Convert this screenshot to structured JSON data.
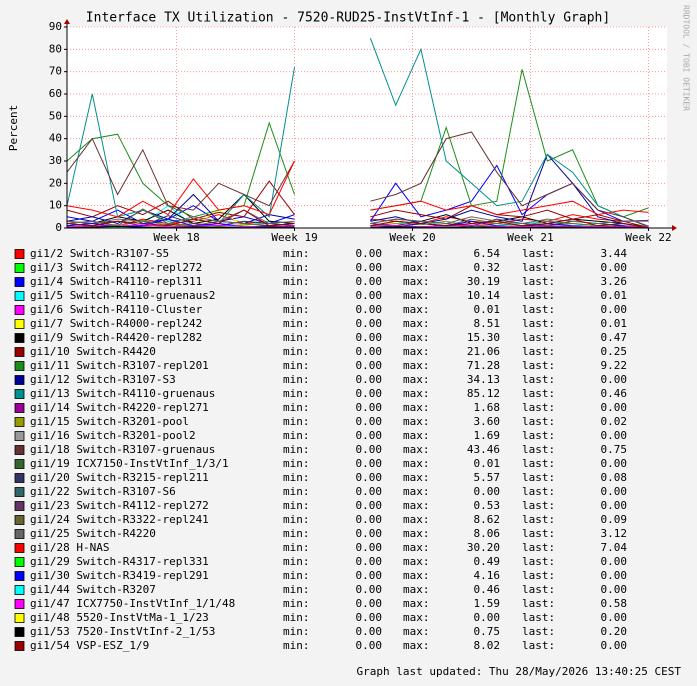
{
  "chart_data": {
    "type": "line",
    "title": "Interface TX Utilization - 7520-RUD25-InstVtInf-1 - [Monthly Graph]",
    "y_label": "Percent",
    "side_label": "RRDTOOL / TOBI OETIKER",
    "footer": "Graph last updated: Thu 28/May/2026 13:40:25 CEST",
    "grid": true,
    "legend_labels": {
      "min": "min:",
      "max": "max:",
      "last": "last:"
    },
    "x": [
      0,
      1.5,
      3,
      4.5,
      6,
      7.5,
      9,
      10.5,
      12,
      13.5,
      15,
      16.5,
      18,
      19.5,
      21,
      22.5,
      24,
      25.5,
      27,
      28.5,
      30,
      31.5,
      33,
      34.5
    ],
    "xlim": [
      0,
      35.6
    ],
    "xticks": [
      {
        "value": 6.5,
        "label": "Week 18"
      },
      {
        "value": 13.5,
        "label": "Week 19"
      },
      {
        "value": 20.5,
        "label": "Week 20"
      },
      {
        "value": 27.5,
        "label": "Week 21"
      },
      {
        "value": 34.5,
        "label": "Week 22"
      }
    ],
    "ylim": [
      0,
      90
    ],
    "yticks": [
      0,
      10,
      20,
      30,
      40,
      50,
      60,
      70,
      80,
      90
    ],
    "series": [
      {
        "name": "gi1/2 Switch-R3107-S5",
        "color": "#FF0000",
        "min": "0.00",
        "max": "6.54",
        "last": "3.44",
        "values": [
          2,
          3,
          1,
          4,
          2,
          3,
          6,
          2,
          3,
          2,
          null,
          null,
          4,
          3,
          2,
          5,
          3,
          2,
          4,
          3,
          6,
          4,
          3,
          3.4
        ]
      },
      {
        "name": "gi1/3 Switch-R4112-repl272",
        "color": "#00FF00",
        "min": "0.00",
        "max": "0.32",
        "last": "0.00",
        "values": [
          0.1,
          0.2,
          0,
          0.1,
          0.3,
          0,
          0.1,
          0.2,
          0,
          0.1,
          null,
          null,
          0,
          0.2,
          0.1,
          0,
          0.3,
          0.1,
          0,
          0.2,
          0.1,
          0,
          0.1,
          0
        ]
      },
      {
        "name": "gi1/4 Switch-R4110-repl311",
        "color": "#0000FF",
        "min": "0.00",
        "max": "30.19",
        "last": "3.26",
        "values": [
          5,
          3,
          8,
          2,
          4,
          10,
          3,
          5,
          2,
          6,
          null,
          null,
          3,
          20,
          5,
          8,
          12,
          28,
          6,
          15,
          20,
          8,
          3,
          3.3
        ]
      },
      {
        "name": "gi1/5 Switch-R4110-gruenaus2",
        "color": "#00FFFF",
        "min": "0.00",
        "max": "10.14",
        "last": "0.01",
        "values": [
          2,
          1,
          3,
          2,
          10,
          1,
          2,
          1,
          3,
          2,
          null,
          null,
          1,
          2,
          3,
          1,
          2,
          1,
          2,
          3,
          1,
          2,
          1,
          0
        ]
      },
      {
        "name": "gi1/6 Switch-R4110-Cluster",
        "color": "#FF00FF",
        "min": "0.00",
        "max": "0.01",
        "last": "0.00",
        "values": [
          0,
          0,
          0,
          0,
          0,
          0,
          0,
          0,
          0,
          0,
          null,
          null,
          0,
          0,
          0,
          0,
          0,
          0,
          0,
          0,
          0,
          0,
          0,
          0
        ]
      },
      {
        "name": "gi1/7 Switch-R4000-repl242",
        "color": "#FFFF00",
        "min": "0.00",
        "max": "8.51",
        "last": "0.01",
        "values": [
          1,
          2,
          1,
          0,
          2,
          1,
          8,
          1,
          0,
          1,
          null,
          null,
          1,
          2,
          0,
          1,
          2,
          1,
          0,
          1,
          2,
          1,
          0,
          0
        ]
      },
      {
        "name": "gi1/9 Switch-R4420-repl282",
        "color": "#000000",
        "min": "0.00",
        "max": "15.30",
        "last": "0.47",
        "values": [
          3,
          2,
          5,
          3,
          8,
          2,
          4,
          15,
          3,
          2,
          null,
          null,
          2,
          4,
          3,
          6,
          2,
          3,
          5,
          2,
          4,
          3,
          2,
          0.5
        ]
      },
      {
        "name": "gi1/10 Switch-R4420",
        "color": "#990000",
        "min": "0.00",
        "max": "21.06",
        "last": "0.25",
        "values": [
          8,
          5,
          10,
          6,
          12,
          4,
          7,
          5,
          21,
          6,
          null,
          null,
          5,
          8,
          6,
          4,
          10,
          6,
          5,
          8,
          4,
          6,
          3,
          0.3
        ]
      },
      {
        "name": "gi1/11 Switch-R3107-repl201",
        "color": "#1A8F1A",
        "min": "0.00",
        "max": "71.28",
        "last": "9.22",
        "values": [
          30,
          40,
          42,
          20,
          10,
          5,
          8,
          10,
          47,
          15,
          null,
          null,
          8,
          10,
          12,
          45,
          10,
          12,
          71,
          30,
          35,
          10,
          5,
          9
        ]
      },
      {
        "name": "gi1/12 Switch-R3107-S3",
        "color": "#000099",
        "min": "0.00",
        "max": "34.13",
        "last": "0.00",
        "values": [
          3,
          5,
          2,
          8,
          4,
          15,
          3,
          2,
          6,
          4,
          null,
          null,
          3,
          5,
          2,
          4,
          8,
          5,
          3,
          33,
          20,
          5,
          2,
          0
        ]
      },
      {
        "name": "gi1/13 Switch-R4110-gruenaus",
        "color": "#008F8F",
        "min": "0.00",
        "max": "85.12",
        "last": "0.46",
        "values": [
          10,
          60,
          5,
          8,
          3,
          4,
          2,
          15,
          5,
          72,
          null,
          null,
          85,
          55,
          80,
          30,
          20,
          10,
          12,
          33,
          25,
          10,
          5,
          0.5
        ]
      },
      {
        "name": "gi1/14 Switch-R4220-repl271",
        "color": "#990099",
        "min": "0.00",
        "max": "1.68",
        "last": "0.00",
        "values": [
          0.5,
          1,
          0.2,
          0.8,
          1.6,
          0.3,
          0.5,
          0.2,
          1,
          0.4,
          null,
          null,
          0.3,
          0.8,
          0.5,
          1.2,
          0.4,
          0.6,
          0.3,
          0.9,
          0.5,
          0.2,
          0.4,
          0
        ]
      },
      {
        "name": "gi1/15 Switch-R3201-pool",
        "color": "#999900",
        "min": "0.00",
        "max": "3.60",
        "last": "0.02",
        "values": [
          1,
          2,
          0.5,
          3.5,
          1,
          2,
          0.8,
          1.5,
          2,
          1,
          null,
          null,
          1,
          2,
          1.5,
          3,
          1,
          2,
          1,
          1.5,
          2,
          1,
          0.5,
          0
        ]
      },
      {
        "name": "gi1/16 Switch-R3201-pool2",
        "color": "#999999",
        "min": "0.00",
        "max": "1.69",
        "last": "0.00",
        "values": [
          0.5,
          0.8,
          1.6,
          0.3,
          0.5,
          1,
          0.4,
          0.6,
          0.2,
          0.8,
          null,
          null,
          0.5,
          1,
          0.3,
          0.6,
          1.2,
          0.4,
          0.5,
          0.3,
          0.8,
          0.4,
          0.2,
          0
        ]
      },
      {
        "name": "gi1/18 Switch-R3107-gruenaus",
        "color": "#663333",
        "min": "0.00",
        "max": "43.46",
        "last": "0.75",
        "values": [
          25,
          40,
          15,
          35,
          10,
          8,
          20,
          15,
          10,
          30,
          null,
          null,
          12,
          15,
          20,
          40,
          43,
          25,
          10,
          15,
          20,
          8,
          5,
          0.8
        ]
      },
      {
        "name": "gi1/19 ICX7150-InstVtInf_1/3/1",
        "color": "#336633",
        "min": "0.00",
        "max": "0.01",
        "last": "0.00",
        "values": [
          0,
          0,
          0,
          0,
          0,
          0,
          0,
          0,
          0,
          0,
          null,
          null,
          0,
          0,
          0,
          0,
          0,
          0,
          0,
          0,
          0,
          0,
          0,
          0
        ]
      },
      {
        "name": "gi1/20 Switch-R3215-repl211",
        "color": "#333366",
        "min": "0.00",
        "max": "5.57",
        "last": "0.08",
        "values": [
          1,
          2,
          3,
          1,
          5.5,
          2,
          1,
          3,
          2,
          1,
          null,
          null,
          2,
          1,
          3,
          2,
          1,
          4,
          2,
          1,
          3,
          2,
          1,
          0.1
        ]
      },
      {
        "name": "gi1/22 Switch-R3107-S6",
        "color": "#336666",
        "min": "0.00",
        "max": "0.00",
        "last": "0.00",
        "values": [
          0,
          0,
          0,
          0,
          0,
          0,
          0,
          0,
          0,
          0,
          null,
          null,
          0,
          0,
          0,
          0,
          0,
          0,
          0,
          0,
          0,
          0,
          0,
          0
        ]
      },
      {
        "name": "gi1/23 Switch-R4112-repl272",
        "color": "#663366",
        "min": "0.00",
        "max": "0.53",
        "last": "0.00",
        "values": [
          0.1,
          0.3,
          0.5,
          0.1,
          0.2,
          0,
          0.3,
          0.1,
          0.2,
          0.4,
          null,
          null,
          0.1,
          0.2,
          0,
          0.3,
          0.1,
          0.2,
          0,
          0.1,
          0.3,
          0.1,
          0,
          0
        ]
      },
      {
        "name": "gi1/24 Switch-R3322-repl241",
        "color": "#666633",
        "min": "0.00",
        "max": "8.62",
        "last": "0.09",
        "values": [
          2,
          3,
          1,
          8.5,
          2,
          1,
          3,
          2,
          1,
          2,
          null,
          null,
          1,
          3,
          2,
          1,
          4,
          2,
          1,
          3,
          2,
          1,
          2,
          0.1
        ]
      },
      {
        "name": "gi1/25 Switch-R4220",
        "color": "#666666",
        "min": "0.00",
        "max": "8.06",
        "last": "3.12",
        "values": [
          3,
          2,
          4,
          3,
          2,
          5,
          3,
          8,
          2,
          3,
          null,
          null,
          2,
          4,
          3,
          2,
          5,
          3,
          2,
          4,
          3,
          2,
          3,
          3.1
        ]
      },
      {
        "name": "gi1/28 H-NAS",
        "color": "#FF0000",
        "min": "0.00",
        "max": "30.20",
        "last": "7.04",
        "values": [
          10,
          8,
          5,
          12,
          6,
          22,
          8,
          10,
          6,
          30,
          null,
          null,
          8,
          10,
          12,
          8,
          10,
          6,
          8,
          10,
          12,
          6,
          8,
          7
        ]
      },
      {
        "name": "gi1/29 Switch-R4317-repl331",
        "color": "#00FF00",
        "min": "0.00",
        "max": "0.49",
        "last": "0.00",
        "values": [
          0.1,
          0.2,
          0.4,
          0.1,
          0.2,
          0,
          0.3,
          0.1,
          0.2,
          0.1,
          null,
          null,
          0.1,
          0.2,
          0,
          0.3,
          0.1,
          0.2,
          0,
          0.1,
          0.2,
          0.1,
          0,
          0
        ]
      },
      {
        "name": "gi1/30 Switch-R3419-repl291",
        "color": "#0000FF",
        "min": "0.00",
        "max": "4.16",
        "last": "0.00",
        "values": [
          1,
          2,
          0.5,
          1,
          4,
          1,
          2,
          0.5,
          1,
          2,
          null,
          null,
          1,
          0.5,
          2,
          1,
          3,
          1,
          0.5,
          2,
          1,
          0.5,
          1,
          0
        ]
      },
      {
        "name": "gi1/44 Switch-R3207",
        "color": "#00FFFF",
        "min": "0.00",
        "max": "0.46",
        "last": "0.00",
        "values": [
          0.1,
          0.2,
          0.1,
          0.4,
          0.1,
          0,
          0.2,
          0.1,
          0.3,
          0.1,
          null,
          null,
          0.1,
          0.2,
          0,
          0.1,
          0.3,
          0.1,
          0,
          0.2,
          0.1,
          0,
          0.1,
          0
        ]
      },
      {
        "name": "gi1/47 ICX7750-InstVtInf_1/1/48",
        "color": "#FF00FF",
        "min": "0.00",
        "max": "1.59",
        "last": "0.58",
        "values": [
          0.5,
          1,
          0.8,
          1.5,
          0.6,
          0.9,
          1.2,
          0.7,
          0.5,
          1,
          null,
          null,
          0.8,
          1.1,
          0.6,
          0.9,
          1.3,
          0.7,
          0.6,
          1,
          0.8,
          0.5,
          0.7,
          0.6
        ]
      },
      {
        "name": "gi1/48 5520-InstVtMa-1_1/23",
        "color": "#FFFF00",
        "min": "0.00",
        "max": "0.00",
        "last": "0.00",
        "values": [
          0,
          0,
          0,
          0,
          0,
          0,
          0,
          0,
          0,
          0,
          null,
          null,
          0,
          0,
          0,
          0,
          0,
          0,
          0,
          0,
          0,
          0,
          0,
          0
        ]
      },
      {
        "name": "gi1/53 7520-InstVtInf-2_1/53",
        "color": "#000000",
        "min": "0.00",
        "max": "0.75",
        "last": "0.20",
        "values": [
          0.2,
          0.4,
          0.7,
          0.3,
          0.2,
          0.5,
          0.3,
          0.2,
          0.4,
          0.3,
          null,
          null,
          0.2,
          0.5,
          0.3,
          0.2,
          0.6,
          0.3,
          0.2,
          0.4,
          0.3,
          0.2,
          0.3,
          0.2
        ]
      },
      {
        "name": "gi1/54 VSP-ESZ_1/9",
        "color": "#990000",
        "min": "0.00",
        "max": "8.02",
        "last": "0.00",
        "values": [
          2,
          1,
          3,
          2,
          1,
          4,
          2,
          8,
          1,
          2,
          null,
          null,
          1,
          3,
          2,
          1,
          2,
          3,
          1,
          2,
          4,
          1,
          2,
          0
        ]
      }
    ]
  }
}
